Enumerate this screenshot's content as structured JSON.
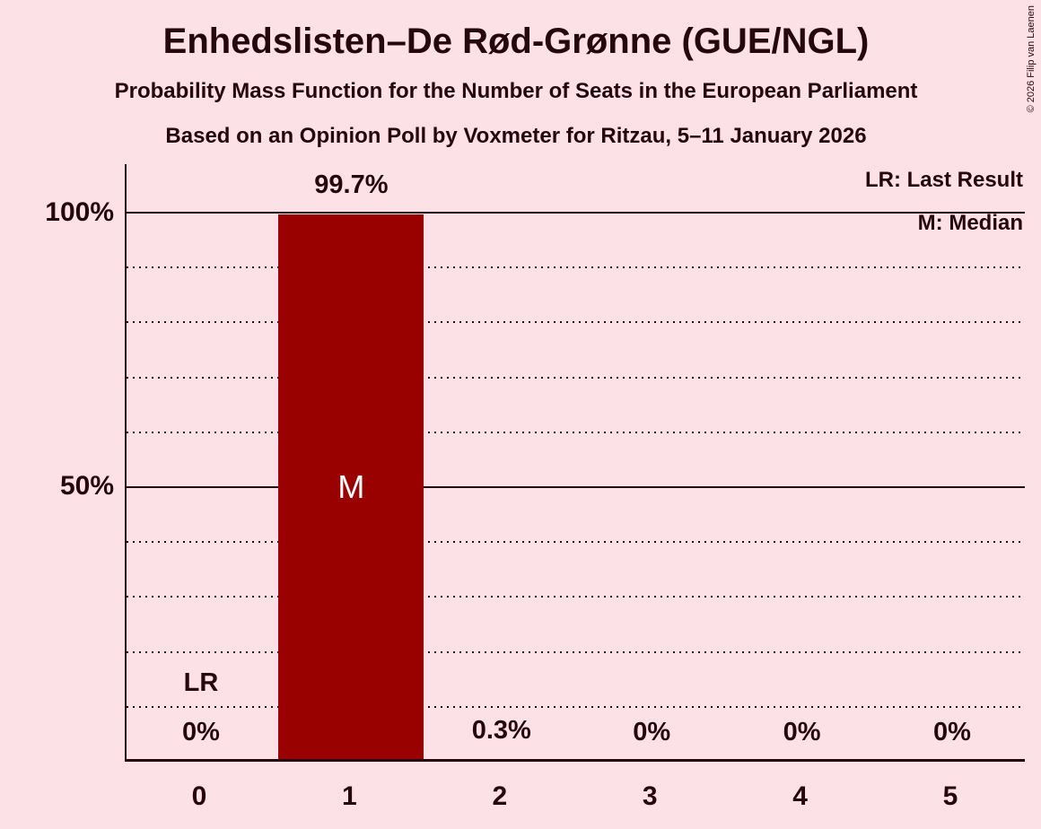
{
  "chart_data": {
    "type": "bar",
    "title": "Enhedslisten–De Rød-Grønne (GUE/NGL)",
    "subtitle": "Probability Mass Function for the Number of Seats in the European Parliament",
    "source_line": "Based on an Opinion Poll by Voxmeter for Ritzau, 5–11 January 2026",
    "categories": [
      "0",
      "1",
      "2",
      "3",
      "4",
      "5"
    ],
    "values": [
      0,
      99.7,
      0.3,
      0,
      0,
      0
    ],
    "value_labels": [
      "0%",
      "99.7%",
      "0.3%",
      "0%",
      "0%",
      "0%"
    ],
    "xlabel": "",
    "ylabel": "",
    "ylim": [
      0,
      100
    ],
    "ytick_labels": {
      "top": "100%",
      "mid": "50%"
    },
    "solid_gridlines": [
      100,
      50
    ],
    "dotted_gridlines": [
      90,
      80,
      70,
      60,
      40,
      30,
      20,
      10
    ],
    "grid": "on",
    "legend_position": "top-right",
    "legend": {
      "lr": "LR: Last Result",
      "m": "M: Median"
    },
    "markers": {
      "last_result_label": "LR",
      "last_result_category_index": 0,
      "median_label": "M",
      "median_category_index": 1
    },
    "copyright": "© 2026 Filip van Laenen",
    "colors": {
      "background": "#fce2e7",
      "bar": "#990000",
      "text": "#26070d",
      "median_text": "#ffffff"
    }
  }
}
